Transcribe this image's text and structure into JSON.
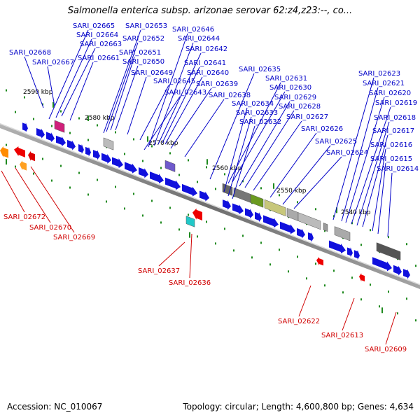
{
  "title": "Salmonella enterica subsp. arizonae serovar 62:z4,z23:--, co...",
  "footer": {
    "accession": "Accession: NC_010067",
    "topology": "Topology: circular; Length: 4,600,800 bp; Genes: 4,634"
  },
  "colors": {
    "forward_gene": "#1010dd",
    "reverse_gene": "#ee0000",
    "forward_label": "#0000c8",
    "reverse_label": "#d00000",
    "backbone": "#8c8c8c",
    "tick": "#1f8a1f",
    "scale_text": "#000000"
  },
  "scale_labels": [
    "2590 kbp",
    "2580 kbp",
    "2570 kbp",
    "2560 kbp",
    "2550 kbp",
    "2540 kbp"
  ],
  "forward_labels": [
    "SARI_02665",
    "SARI_02664",
    "SARI_02663",
    "SARI_02668",
    "SARI_02667",
    "SARI_02661",
    "SARI_02653",
    "SARI_02652",
    "SARI_02651",
    "SARI_02650",
    "SARI_02649",
    "SARI_02646",
    "SARI_02644",
    "SARI_02642",
    "SARI_02641",
    "SARI_02640",
    "SARI_02645",
    "SARI_02639",
    "SARI_02643",
    "SARI_02638",
    "SARI_02635",
    "SARI_02631",
    "SARI_02630",
    "SARI_02634",
    "SARI_02629",
    "SARI_02633",
    "SARI_02628",
    "SARI_02632",
    "SARI_02627",
    "SARI_02626",
    "SARI_02625",
    "SARI_02624",
    "SARI_02623",
    "SARI_02621",
    "SARI_02620",
    "SARI_02619",
    "SARI_02618",
    "SARI_02617",
    "SARI_02616",
    "SARI_02615",
    "SARI_02614"
  ],
  "reverse_labels": [
    "SARI_02672",
    "SARI_02670",
    "SARI_02669",
    "SARI_02637",
    "SARI_02636",
    "SARI_02622",
    "SARI_02613",
    "SARI_02609"
  ]
}
